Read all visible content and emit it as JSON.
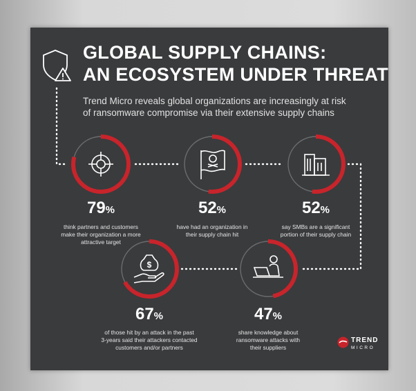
{
  "header": {
    "title_line1": "GLOBAL SUPPLY CHAINS:",
    "title_line2": "AN ECOSYSTEM UNDER THREAT",
    "subtitle_line1": "Trend Micro reveals global organizations are increasingly at risk",
    "subtitle_line2": "of ransomware compromise via their extensive supply chains",
    "icon": "shield-warning-icon"
  },
  "stats": [
    {
      "value": "79",
      "unit": "%",
      "fraction": 0.79,
      "icon": "crosshair-target-icon",
      "desc_line1": "think partners and customers",
      "desc_line2": "make their organization a more",
      "desc_line3": "attractive target"
    },
    {
      "value": "52",
      "unit": "%",
      "fraction": 0.52,
      "icon": "pirate-flag-icon",
      "desc_line1": "have had an organization in",
      "desc_line2": "their supply chain hit",
      "desc_line3": ""
    },
    {
      "value": "52",
      "unit": "%",
      "fraction": 0.52,
      "icon": "buildings-icon",
      "desc_line1": "say SMBs are a significant",
      "desc_line2": "portion of their supply chain",
      "desc_line3": ""
    },
    {
      "value": "67",
      "unit": "%",
      "fraction": 0.67,
      "icon": "money-hand-icon",
      "desc_line1": "of those hit by an attack in the past",
      "desc_line2": "3-years said their attackers contacted",
      "desc_line3": "customers and/or partners"
    },
    {
      "value": "47",
      "unit": "%",
      "fraction": 0.47,
      "icon": "person-laptop-icon",
      "desc_line1": "share knowledge about",
      "desc_line2": "ransomware attacks with",
      "desc_line3": "their suppliers"
    }
  ],
  "logo": {
    "line1": "TREND",
    "line2": "MICRO",
    "icon": "trend-micro-logo-icon"
  },
  "colors": {
    "background": "#3a3b3d",
    "accent": "#c8242b",
    "ring": "#6b6c6e",
    "text": "#ffffff"
  }
}
